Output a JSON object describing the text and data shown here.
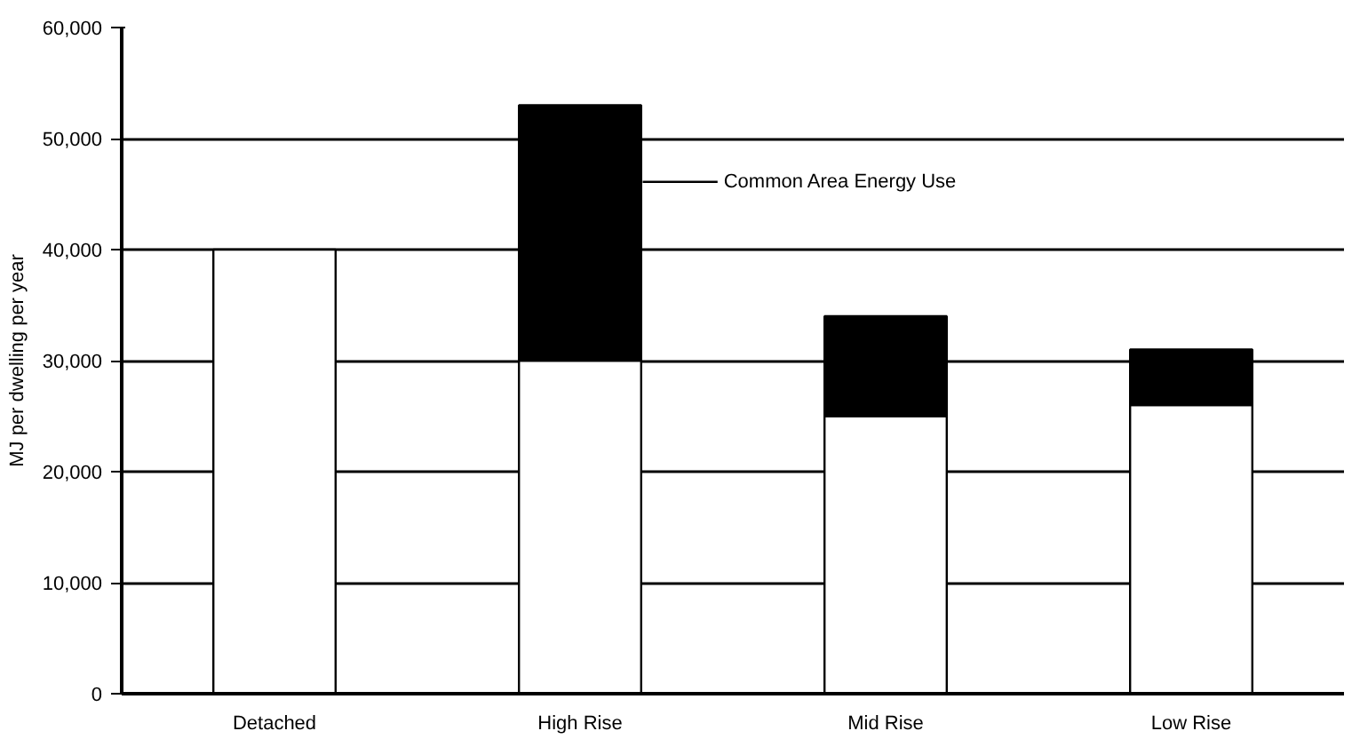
{
  "chart_data": {
    "type": "bar",
    "stacked": true,
    "ylabel": "MJ per dwelling per year",
    "categories": [
      "Detached",
      "High Rise",
      "Mid Rise",
      "Low Rise"
    ],
    "series": [
      {
        "color": "#ffffff",
        "values": [
          40000,
          30000,
          25000,
          26000
        ]
      },
      {
        "color": "#000000",
        "values": [
          0,
          23000,
          9000,
          5000
        ]
      }
    ],
    "ylim": [
      0,
      60000
    ],
    "yticks": [
      {
        "value": 0,
        "label": "0"
      },
      {
        "value": 10000,
        "label": "10,000"
      },
      {
        "value": 20000,
        "label": "20,000"
      },
      {
        "value": 30000,
        "label": "30,000"
      },
      {
        "value": 40000,
        "label": "40,000"
      },
      {
        "value": 50000,
        "label": "50,000"
      },
      {
        "value": 60000,
        "label": "60,000"
      }
    ],
    "grid": "y",
    "annotations": [
      "Common Area Energy Use"
    ]
  }
}
